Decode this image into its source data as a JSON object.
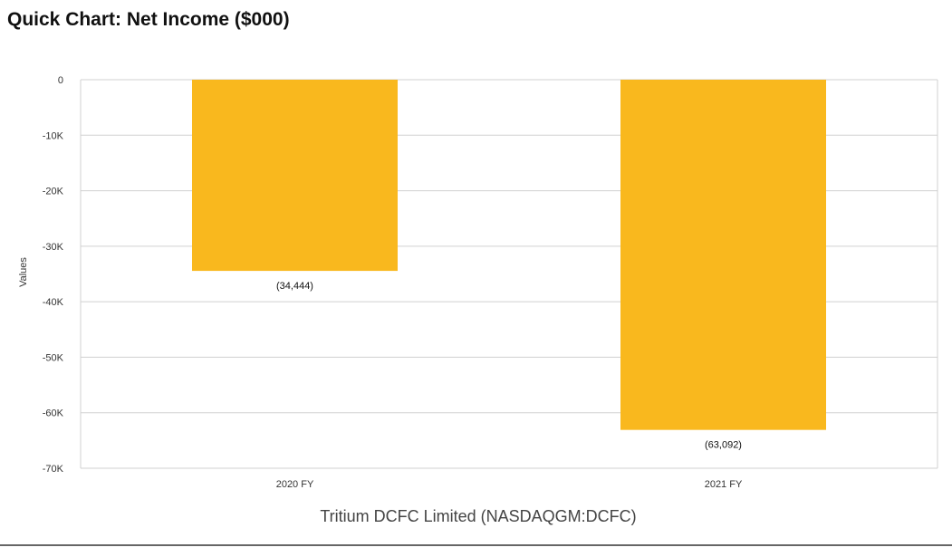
{
  "page": {
    "title": "Quick Chart: Net Income ($000)"
  },
  "chart_data": {
    "type": "bar",
    "title": "Quick Chart: Net Income ($000)",
    "categories": [
      "2020 FY",
      "2021 FY"
    ],
    "values": [
      -34444,
      -63092
    ],
    "value_labels": [
      "(34,444)",
      "(63,092)"
    ],
    "xlabel": "Tritium DCFC Limited (NASDAQGM:DCFC)",
    "ylabel": "Values",
    "ylim": [
      -70000,
      0
    ],
    "yticks": [
      0,
      -10000,
      -20000,
      -30000,
      -40000,
      -50000,
      -60000,
      -70000
    ],
    "ytick_labels": [
      "0",
      "-10K",
      "-20K",
      "-30K",
      "-40K",
      "-50K",
      "-60K",
      "-70K"
    ],
    "grid": true,
    "bar_color": "#F9B81E",
    "grid_color": "#D0D0D0"
  }
}
